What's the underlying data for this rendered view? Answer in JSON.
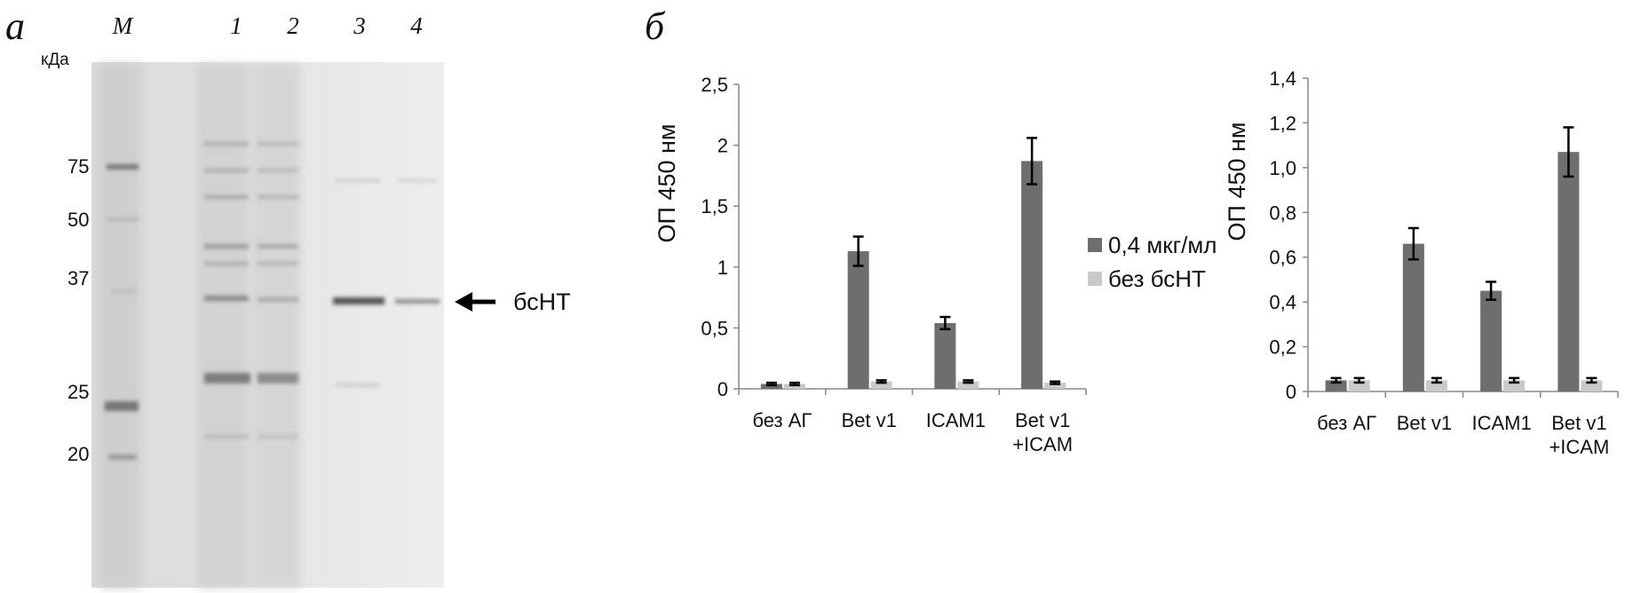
{
  "gel": {
    "panel_label": "а",
    "unit": "кДа",
    "lanes": [
      "M",
      "1",
      "2",
      "3",
      "4"
    ],
    "markers": [
      "75",
      "50",
      "37",
      "25",
      "20"
    ],
    "band_label": "бсНТ"
  },
  "panel_label": "б",
  "chart_data": [
    {
      "type": "bar",
      "y_label": "ОП 450 нм",
      "categories": [
        "без АГ",
        "Bet v1",
        "ICAM1",
        "Bet v1\n+ICAM"
      ],
      "series": [
        {
          "name": "0,4 мкг/мл",
          "color": "#6e6e6e",
          "values": [
            0.04,
            1.13,
            0.54,
            1.87
          ],
          "errors": [
            0.01,
            0.12,
            0.05,
            0.19
          ]
        },
        {
          "name": "без бсНТ",
          "color": "#c9c9c9",
          "values": [
            0.04,
            0.06,
            0.06,
            0.05
          ],
          "errors": [
            0.01,
            0.01,
            0.01,
            0.01
          ]
        }
      ],
      "ylim": [
        0,
        2.5
      ],
      "yticks": [
        0,
        {
          "value": 0.5,
          "label": "0,5"
        },
        1,
        {
          "value": 1.5,
          "label": "1,5"
        },
        2,
        {
          "value": 2.5,
          "label": "2,5"
        }
      ],
      "legend": "right"
    },
    {
      "type": "bar",
      "y_label": "ОП 450 нм",
      "categories": [
        "без АГ",
        "Bet v1",
        "ICAM1",
        "Bet v1\n+ICAM"
      ],
      "series": [
        {
          "color": "#6e6e6e",
          "values": [
            0.05,
            0.66,
            0.45,
            1.07
          ],
          "errors": [
            0.01,
            0.07,
            0.04,
            0.11
          ]
        },
        {
          "color": "#c9c9c9",
          "values": [
            0.05,
            0.05,
            0.05,
            0.05
          ],
          "errors": [
            0.01,
            0.01,
            0.01,
            0.01
          ]
        }
      ],
      "ylim": [
        0,
        1.4
      ],
      "yticks": [
        0,
        {
          "value": 0.2,
          "label": "0,2"
        },
        {
          "value": 0.4,
          "label": "0,4"
        },
        {
          "value": 0.6,
          "label": "0,6"
        },
        {
          "value": 0.8,
          "label": "0,8"
        },
        {
          "value": 1.0,
          "label": "1,0"
        },
        {
          "value": 1.2,
          "label": "1,2"
        },
        {
          "value": 1.4,
          "label": "1,4"
        }
      ]
    }
  ]
}
